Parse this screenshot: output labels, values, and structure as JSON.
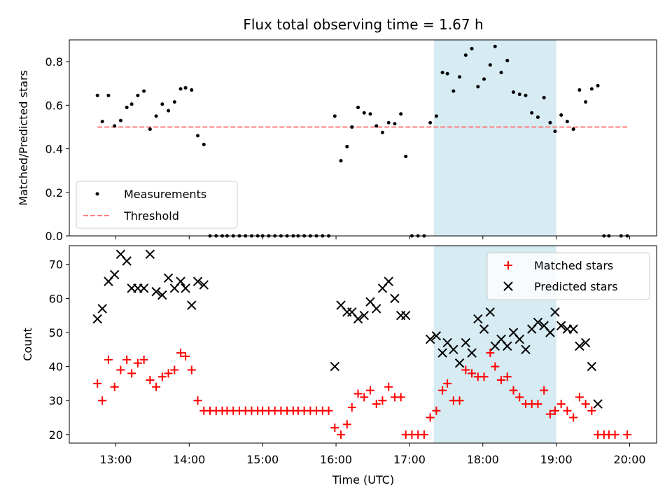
{
  "chart_data": [
    {
      "type": "scatter",
      "title": "Flux total observing time = 1.67 h",
      "xlabel": "",
      "ylabel": "Matched/Predicted stars",
      "ylim": [
        0,
        0.9
      ],
      "yticks": [
        "0.0",
        "0.2",
        "0.4",
        "0.6",
        "0.8"
      ],
      "xlim": [
        "12:22",
        "20:22"
      ],
      "shaded_region": {
        "start": "17:20",
        "end": "19:00",
        "color": "#add8e6"
      },
      "legend": {
        "placement": "lower-left",
        "entries": [
          "Measurements",
          "Threshold"
        ]
      },
      "threshold": {
        "name": "Threshold",
        "value": 0.5,
        "start": "12:45",
        "end": "19:58",
        "color": "#ff7f7f"
      },
      "series": [
        {
          "name": "Measurements",
          "color": "#000000",
          "points": [
            [
              "12:45",
              0.645
            ],
            [
              "12:49",
              0.525
            ],
            [
              "12:54",
              0.645
            ],
            [
              "12:59",
              0.505
            ],
            [
              "13:04",
              0.53
            ],
            [
              "13:09",
              0.59
            ],
            [
              "13:13",
              0.605
            ],
            [
              "13:18",
              0.645
            ],
            [
              "13:23",
              0.665
            ],
            [
              "13:28",
              0.49
            ],
            [
              "13:33",
              0.55
            ],
            [
              "13:38",
              0.605
            ],
            [
              "13:43",
              0.575
            ],
            [
              "13:48",
              0.615
            ],
            [
              "13:53",
              0.675
            ],
            [
              "13:57",
              0.68
            ],
            [
              "14:02",
              0.67
            ],
            [
              "14:07",
              0.46
            ],
            [
              "14:12",
              0.42
            ],
            [
              "14:17",
              0
            ],
            [
              "14:22",
              0
            ],
            [
              "14:27",
              0
            ],
            [
              "14:31",
              0
            ],
            [
              "14:36",
              0
            ],
            [
              "14:41",
              0
            ],
            [
              "14:46",
              0
            ],
            [
              "14:51",
              0
            ],
            [
              "14:56",
              0
            ],
            [
              "15:00",
              0
            ],
            [
              "15:05",
              0
            ],
            [
              "15:10",
              0
            ],
            [
              "15:15",
              0
            ],
            [
              "15:20",
              0
            ],
            [
              "15:25",
              0
            ],
            [
              "15:29",
              0
            ],
            [
              "15:34",
              0
            ],
            [
              "15:39",
              0
            ],
            [
              "15:44",
              0
            ],
            [
              "15:49",
              0
            ],
            [
              "15:54",
              0
            ],
            [
              "15:59",
              0.55
            ],
            [
              "16:04",
              0.345
            ],
            [
              "16:09",
              0.41
            ],
            [
              "16:13",
              0.5
            ],
            [
              "16:18",
              0.59
            ],
            [
              "16:23",
              0.565
            ],
            [
              "16:28",
              0.56
            ],
            [
              "16:33",
              0.505
            ],
            [
              "16:38",
              0.475
            ],
            [
              "16:43",
              0.52
            ],
            [
              "16:48",
              0.515
            ],
            [
              "16:53",
              0.56
            ],
            [
              "16:57",
              0.365
            ],
            [
              "17:02",
              0
            ],
            [
              "17:07",
              0
            ],
            [
              "17:12",
              0
            ],
            [
              "17:17",
              0.52
            ],
            [
              "17:22",
              0.55
            ],
            [
              "17:27",
              0.75
            ],
            [
              "17:31",
              0.745
            ],
            [
              "17:36",
              0.665
            ],
            [
              "17:41",
              0.73
            ],
            [
              "17:46",
              0.83
            ],
            [
              "17:51",
              0.86
            ],
            [
              "17:56",
              0.685
            ],
            [
              "18:01",
              0.72
            ],
            [
              "18:06",
              0.785
            ],
            [
              "18:10",
              0.87
            ],
            [
              "18:15",
              0.75
            ],
            [
              "18:20",
              0.805
            ],
            [
              "18:25",
              0.66
            ],
            [
              "18:30",
              0.65
            ],
            [
              "18:35",
              0.645
            ],
            [
              "18:40",
              0.565
            ],
            [
              "18:45",
              0.545
            ],
            [
              "18:50",
              0.635
            ],
            [
              "18:55",
              0.52
            ],
            [
              "18:59",
              0.48
            ],
            [
              "19:04",
              0.555
            ],
            [
              "19:09",
              0.525
            ],
            [
              "19:14",
              0.49
            ],
            [
              "19:19",
              0.67
            ],
            [
              "19:24",
              0.615
            ],
            [
              "19:29",
              0.675
            ],
            [
              "19:34",
              0.69
            ],
            [
              "19:39",
              0
            ],
            [
              "19:43",
              0
            ],
            [
              "19:53",
              0
            ],
            [
              "19:58",
              0
            ]
          ]
        }
      ]
    },
    {
      "type": "scatter",
      "title": "",
      "xlabel": "Time (UTC)",
      "ylabel": "Count",
      "ylim": [
        17.5,
        75.5
      ],
      "yticks": [
        "20",
        "30",
        "40",
        "50",
        "60",
        "70"
      ],
      "xlim": [
        "12:22",
        "20:22"
      ],
      "xticks": [
        "13:00",
        "14:00",
        "15:00",
        "16:00",
        "17:00",
        "18:00",
        "19:00",
        "20:00"
      ],
      "shaded_region": {
        "start": "17:20",
        "end": "19:00",
        "color": "#add8e6"
      },
      "legend": {
        "placement": "top-right",
        "entries": [
          "Matched stars",
          "Predicted stars"
        ]
      },
      "series": [
        {
          "name": "Matched stars",
          "marker": "plus",
          "color": "#ff0000",
          "points": [
            [
              "12:45",
              35
            ],
            [
              "12:49",
              30
            ],
            [
              "12:54",
              42
            ],
            [
              "12:59",
              34
            ],
            [
              "13:04",
              39
            ],
            [
              "13:09",
              42
            ],
            [
              "13:13",
              38
            ],
            [
              "13:18",
              41
            ],
            [
              "13:23",
              42
            ],
            [
              "13:28",
              36
            ],
            [
              "13:33",
              34
            ],
            [
              "13:38",
              37
            ],
            [
              "13:43",
              38
            ],
            [
              "13:48",
              39
            ],
            [
              "13:53",
              44
            ],
            [
              "13:57",
              43
            ],
            [
              "14:02",
              39
            ],
            [
              "14:07",
              30
            ],
            [
              "14:12",
              27
            ],
            [
              "14:17",
              27
            ],
            [
              "14:22",
              27
            ],
            [
              "14:27",
              27
            ],
            [
              "14:31",
              27
            ],
            [
              "14:36",
              27
            ],
            [
              "14:41",
              27
            ],
            [
              "14:46",
              27
            ],
            [
              "14:51",
              27
            ],
            [
              "14:56",
              27
            ],
            [
              "15:00",
              27
            ],
            [
              "15:05",
              27
            ],
            [
              "15:10",
              27
            ],
            [
              "15:15",
              27
            ],
            [
              "15:20",
              27
            ],
            [
              "15:25",
              27
            ],
            [
              "15:29",
              27
            ],
            [
              "15:34",
              27
            ],
            [
              "15:39",
              27
            ],
            [
              "15:44",
              27
            ],
            [
              "15:49",
              27
            ],
            [
              "15:54",
              27
            ],
            [
              "15:59",
              22
            ],
            [
              "16:04",
              20
            ],
            [
              "16:09",
              23
            ],
            [
              "16:13",
              28
            ],
            [
              "16:18",
              32
            ],
            [
              "16:23",
              31
            ],
            [
              "16:28",
              33
            ],
            [
              "16:33",
              29
            ],
            [
              "16:38",
              30
            ],
            [
              "16:43",
              34
            ],
            [
              "16:48",
              31
            ],
            [
              "16:53",
              31
            ],
            [
              "16:57",
              20
            ],
            [
              "17:02",
              20
            ],
            [
              "17:07",
              20
            ],
            [
              "17:12",
              20
            ],
            [
              "17:17",
              25
            ],
            [
              "17:22",
              27
            ],
            [
              "17:27",
              33
            ],
            [
              "17:31",
              35
            ],
            [
              "17:36",
              30
            ],
            [
              "17:41",
              30
            ],
            [
              "17:46",
              39
            ],
            [
              "17:51",
              38
            ],
            [
              "17:56",
              37
            ],
            [
              "18:01",
              37
            ],
            [
              "18:06",
              44
            ],
            [
              "18:10",
              40
            ],
            [
              "18:15",
              36
            ],
            [
              "18:20",
              37
            ],
            [
              "18:25",
              33
            ],
            [
              "18:30",
              31
            ],
            [
              "18:35",
              29
            ],
            [
              "18:40",
              29
            ],
            [
              "18:45",
              29
            ],
            [
              "18:50",
              33
            ],
            [
              "18:55",
              26
            ],
            [
              "18:59",
              27
            ],
            [
              "19:04",
              29
            ],
            [
              "19:09",
              27
            ],
            [
              "19:14",
              25
            ],
            [
              "19:19",
              31
            ],
            [
              "19:24",
              29
            ],
            [
              "19:29",
              27
            ],
            [
              "19:34",
              20
            ],
            [
              "19:39",
              20
            ],
            [
              "19:43",
              20
            ],
            [
              "19:48",
              20
            ],
            [
              "19:58",
              20
            ]
          ]
        },
        {
          "name": "Predicted stars",
          "marker": "x",
          "color": "#000000",
          "points": [
            [
              "12:45",
              54
            ],
            [
              "12:49",
              57
            ],
            [
              "12:54",
              65
            ],
            [
              "12:59",
              67
            ],
            [
              "13:04",
              73
            ],
            [
              "13:09",
              71
            ],
            [
              "13:13",
              63
            ],
            [
              "13:18",
              63
            ],
            [
              "13:23",
              63
            ],
            [
              "13:28",
              73
            ],
            [
              "13:33",
              62
            ],
            [
              "13:38",
              61
            ],
            [
              "13:43",
              66
            ],
            [
              "13:48",
              63
            ],
            [
              "13:53",
              65
            ],
            [
              "13:57",
              63
            ],
            [
              "14:02",
              58
            ],
            [
              "14:07",
              65
            ],
            [
              "14:12",
              64
            ],
            [
              "15:59",
              40
            ],
            [
              "16:04",
              58
            ],
            [
              "16:09",
              56
            ],
            [
              "16:13",
              56
            ],
            [
              "16:18",
              54
            ],
            [
              "16:23",
              55
            ],
            [
              "16:28",
              59
            ],
            [
              "16:33",
              57
            ],
            [
              "16:38",
              63
            ],
            [
              "16:43",
              65
            ],
            [
              "16:48",
              60
            ],
            [
              "16:53",
              55
            ],
            [
              "16:57",
              55
            ],
            [
              "17:17",
              48
            ],
            [
              "17:22",
              49
            ],
            [
              "17:27",
              44
            ],
            [
              "17:31",
              47
            ],
            [
              "17:36",
              45
            ],
            [
              "17:41",
              41
            ],
            [
              "17:46",
              47
            ],
            [
              "17:51",
              44
            ],
            [
              "17:56",
              54
            ],
            [
              "18:01",
              51
            ],
            [
              "18:06",
              56
            ],
            [
              "18:10",
              46
            ],
            [
              "18:15",
              48
            ],
            [
              "18:20",
              46
            ],
            [
              "18:25",
              50
            ],
            [
              "18:30",
              48
            ],
            [
              "18:35",
              45
            ],
            [
              "18:40",
              51
            ],
            [
              "18:45",
              53
            ],
            [
              "18:50",
              52
            ],
            [
              "18:55",
              50
            ],
            [
              "18:59",
              56
            ],
            [
              "19:04",
              52
            ],
            [
              "19:09",
              51
            ],
            [
              "19:14",
              51
            ],
            [
              "19:19",
              46
            ],
            [
              "19:24",
              47
            ],
            [
              "19:29",
              40
            ],
            [
              "19:34",
              29
            ]
          ]
        }
      ]
    }
  ]
}
